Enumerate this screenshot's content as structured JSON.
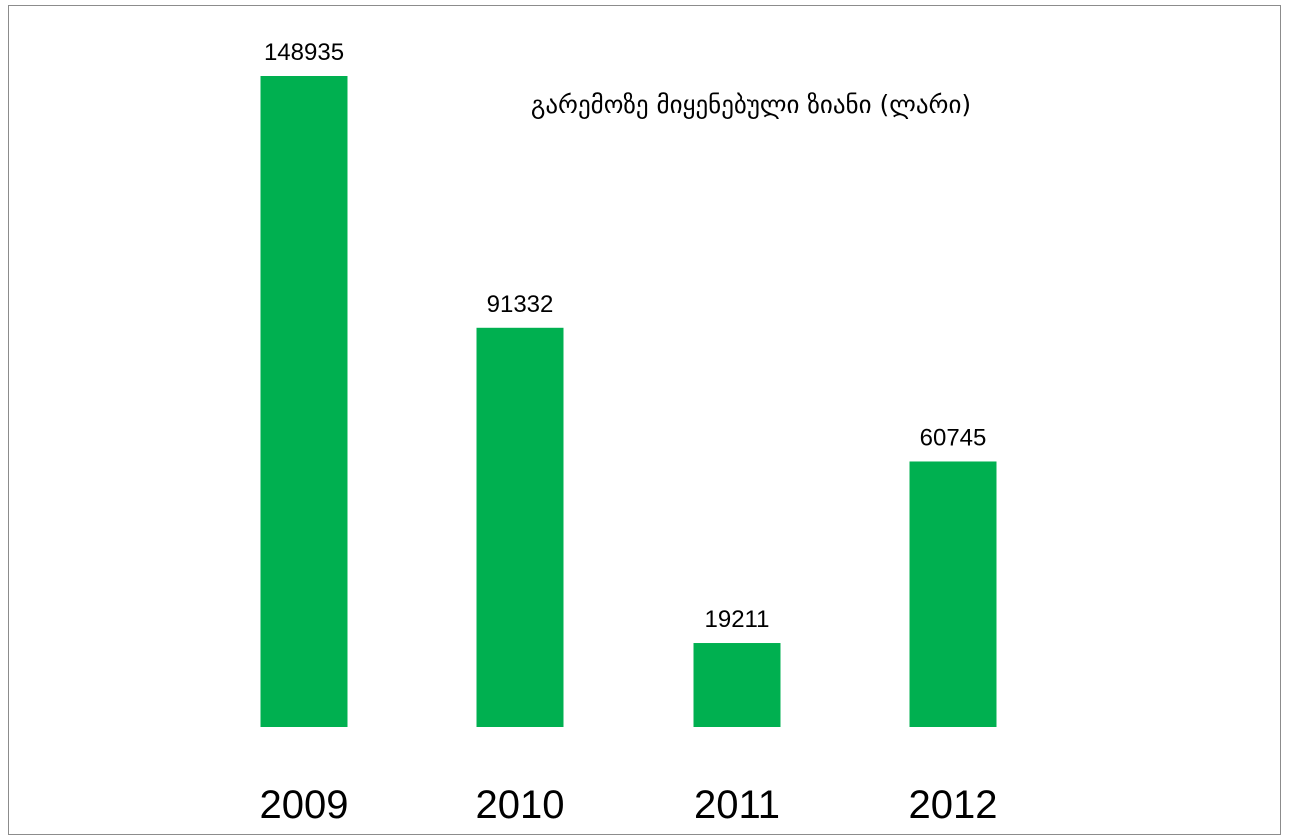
{
  "chart_data": {
    "type": "bar",
    "title": "გარემოზე მიყენებული ზიანი (ლარი)",
    "categories": [
      "2009",
      "2010",
      "2011",
      "2012"
    ],
    "values": [
      148935,
      91332,
      19211,
      60745
    ],
    "data_labels": [
      "148935",
      "91332",
      "19211",
      "60745"
    ],
    "bar_color": "#00B050",
    "ylim": [
      0,
      150000
    ],
    "grid": false,
    "legend": "none",
    "xlabel": "",
    "ylabel": ""
  }
}
